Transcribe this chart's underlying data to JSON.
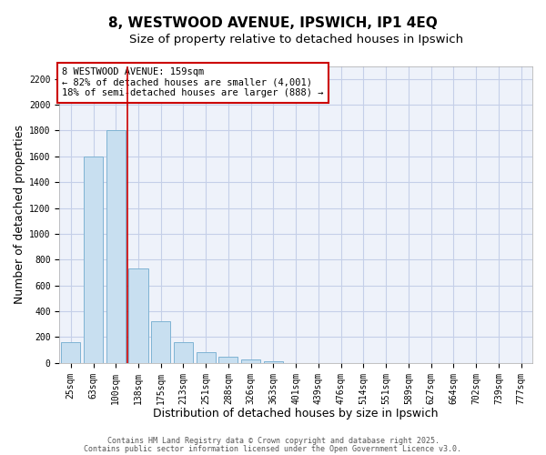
{
  "title": "8, WESTWOOD AVENUE, IPSWICH, IP1 4EQ",
  "subtitle": "Size of property relative to detached houses in Ipswich",
  "xlabel": "Distribution of detached houses by size in Ipswich",
  "ylabel": "Number of detached properties",
  "bin_labels": [
    "25sqm",
    "63sqm",
    "100sqm",
    "138sqm",
    "175sqm",
    "213sqm",
    "251sqm",
    "288sqm",
    "326sqm",
    "363sqm",
    "401sqm",
    "439sqm",
    "476sqm",
    "514sqm",
    "551sqm",
    "589sqm",
    "627sqm",
    "664sqm",
    "702sqm",
    "739sqm",
    "777sqm"
  ],
  "bar_values": [
    160,
    1600,
    1800,
    730,
    325,
    160,
    85,
    45,
    25,
    10,
    0,
    0,
    0,
    0,
    0,
    0,
    0,
    0,
    0,
    0,
    0
  ],
  "bar_color": "#c8dff0",
  "bar_edgecolor": "#7fb3d3",
  "background_color": "#ffffff",
  "plot_bg_color": "#eef2fa",
  "grid_color": "#c5cfe8",
  "annotation_box_text": "8 WESTWOOD AVENUE: 159sqm\n← 82% of detached houses are smaller (4,001)\n18% of semi-detached houses are larger (888) →",
  "annotation_box_facecolor": "#ffffff",
  "annotation_box_edgecolor": "#cc0000",
  "vline_x": 2.5,
  "vline_color": "#cc0000",
  "ylim": [
    0,
    2300
  ],
  "yticks": [
    0,
    200,
    400,
    600,
    800,
    1000,
    1200,
    1400,
    1600,
    1800,
    2000,
    2200
  ],
  "footnote1": "Contains HM Land Registry data © Crown copyright and database right 2025.",
  "footnote2": "Contains public sector information licensed under the Open Government Licence v3.0.",
  "title_fontsize": 11,
  "subtitle_fontsize": 9.5,
  "axis_label_fontsize": 9,
  "tick_fontsize": 7,
  "annotation_fontsize": 7.5,
  "footnote_fontsize": 6
}
